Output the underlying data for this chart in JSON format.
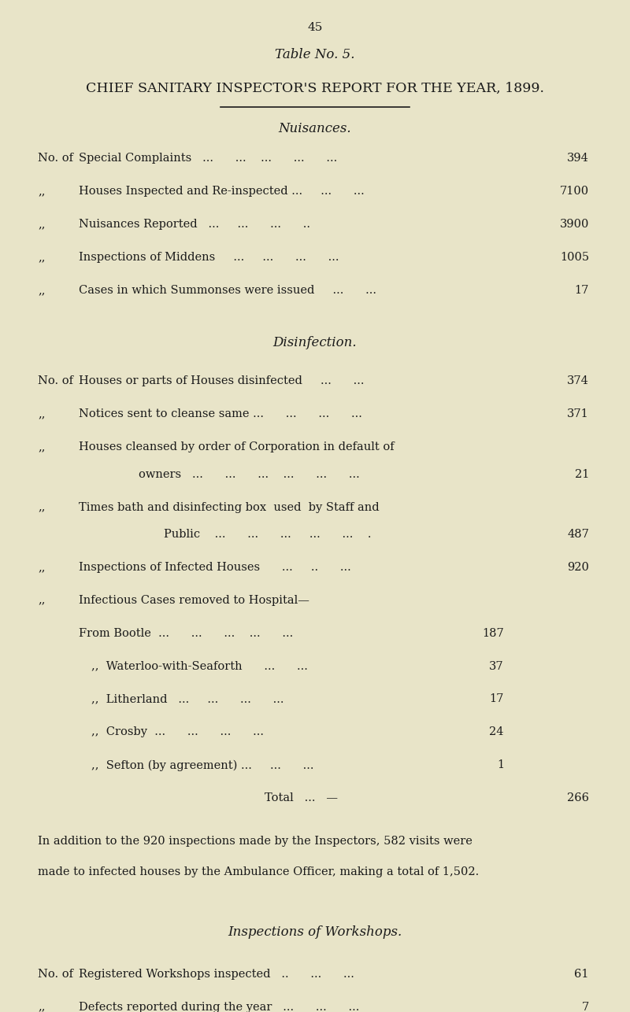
{
  "background_color": "#e8e4c8",
  "text_color": "#1a1a1a",
  "page_number": "45",
  "table_title": "Table No. 5.",
  "main_title": "CHIEF SANITARY INSPECTOR'S REPORT FOR THE YEAR, 1899.",
  "section1_title": "Nuisances.",
  "nuisances_rows": [
    {
      "prefix": "No. of",
      "label": "Special Complaints   ...      ...    ...      ...      ...",
      "value": "394"
    },
    {
      "prefix": ",,",
      "label": "Houses Inspected and Re-inspected ...     ...      ...",
      "value": "7100"
    },
    {
      "prefix": ",,",
      "label": "Nuisances Reported   ...     ...      ...      ..",
      "value": "3900"
    },
    {
      "prefix": ",,",
      "label": "Inspections of Middens     ...     ...      ...      ...",
      "value": "1005"
    },
    {
      "prefix": ",,",
      "label": "Cases in which Summonses were issued     ...      ...",
      "value": "17"
    }
  ],
  "section2_title": "Disinfection.",
  "disinfection_rows": [
    {
      "prefix": "No. of",
      "label": "Houses or parts of Houses disinfected     ...      ...",
      "value": "374",
      "value2": ""
    },
    {
      "prefix": ",,",
      "label": "Notices sent to cleanse same ...      ...      ...      ...",
      "value": "371",
      "value2": ""
    },
    {
      "prefix": ",,",
      "label": "Houses cleansed by order of Corporation in default of",
      "value": "",
      "value2": "",
      "continuation": true
    },
    {
      "prefix": "",
      "label": "owners   ...      ...      ...    ...      ...      ...",
      "value": "21",
      "value2": "",
      "indent": 0.22
    },
    {
      "prefix": ",,",
      "label": "Times bath and disinfecting box  used  by Staff and",
      "value": "",
      "value2": "",
      "continuation": true
    },
    {
      "prefix": "",
      "label": "Public    ...      ...      ...     ...      ...    .",
      "value": "487",
      "value2": "",
      "indent": 0.26
    },
    {
      "prefix": ",,",
      "label": "Inspections of Infected Houses      ...     ..      ...",
      "value": "920",
      "value2": ""
    },
    {
      "prefix": ",,",
      "label": "Infectious Cases removed to Hospital—",
      "value": "",
      "value2": ""
    },
    {
      "prefix": "",
      "label": "From Bootle  ...      ...      ...    ...      ...",
      "value": "",
      "value2": "187"
    },
    {
      "prefix": "",
      "label": ",,  Waterloo-with-Seaforth      ...      ...",
      "value": "",
      "value2": "37"
    },
    {
      "prefix": "",
      "label": ",,  Litherland   ...     ...      ...      ...",
      "value": "",
      "value2": "17"
    },
    {
      "prefix": "",
      "label": ",,  Crosby  ...      ...      ...      ...",
      "value": "",
      "value2": "24"
    },
    {
      "prefix": "",
      "label": ",,  Sefton (by agreement) ...     ...      ...",
      "value": "",
      "value2": "1"
    },
    {
      "prefix": "",
      "label": "Total   ...   —",
      "value": "266",
      "value2": "",
      "is_total": true
    }
  ],
  "paragraph": "In addition to the 920 inspections made by the Inspectors, 582 visits were\nmade to infected houses by the Ambulance Officer, making a total of 1,502.",
  "section3_title": "Inspections of Workshops.",
  "workshops_rows": [
    {
      "prefix": "No. of",
      "label": "Registered Workshops inspected   ..      ...      ...",
      "value": "61"
    },
    {
      "prefix": ",,",
      "label": "Defects reported during the year   ...      ...      ...",
      "value": "7"
    }
  ]
}
